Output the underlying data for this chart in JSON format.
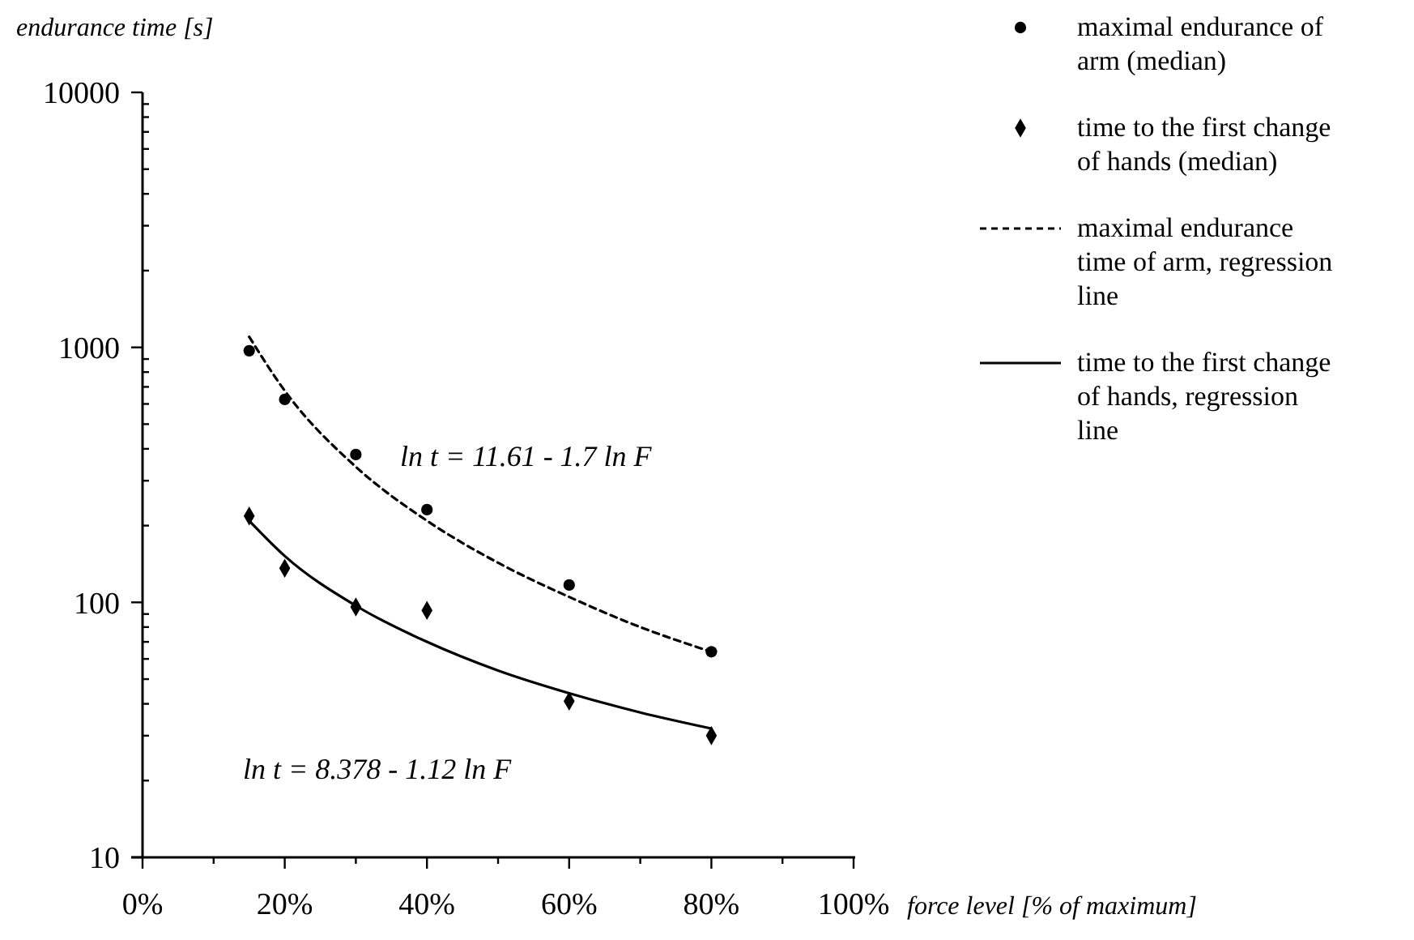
{
  "chart_data": {
    "type": "scatter",
    "xlabel": "force level [% of maximum]",
    "ylabel": "endurance time [s]",
    "log": "y",
    "grid": false,
    "legend": "right",
    "xlim": [
      0,
      100
    ],
    "ylim": [
      10,
      10000
    ],
    "xticks": [
      {
        "value": 0,
        "label": "0%"
      },
      {
        "value": 10,
        "label": null
      },
      {
        "value": 20,
        "label": "20%"
      },
      {
        "value": 30,
        "label": null
      },
      {
        "value": 40,
        "label": "40%"
      },
      {
        "value": 50,
        "label": null
      },
      {
        "value": 60,
        "label": "60%"
      },
      {
        "value": 70,
        "label": null
      },
      {
        "value": 80,
        "label": "80%"
      },
      {
        "value": 90,
        "label": null
      },
      {
        "value": 100,
        "label": "100%"
      }
    ],
    "yticks": [
      10,
      {
        "value": 20,
        "label": null
      },
      {
        "value": 30,
        "label": null
      },
      {
        "value": 40,
        "label": null
      },
      {
        "value": 50,
        "label": null
      },
      {
        "value": 60,
        "label": null
      },
      {
        "value": 70,
        "label": null
      },
      {
        "value": 80,
        "label": null
      },
      {
        "value": 90,
        "label": null
      },
      100,
      {
        "value": 200,
        "label": null
      },
      {
        "value": 300,
        "label": null
      },
      {
        "value": 400,
        "label": null
      },
      {
        "value": 500,
        "label": null
      },
      {
        "value": 600,
        "label": null
      },
      {
        "value": 700,
        "label": null
      },
      {
        "value": 800,
        "label": null
      },
      {
        "value": 900,
        "label": null
      },
      1000,
      {
        "value": 2000,
        "label": null
      },
      {
        "value": 3000,
        "label": null
      },
      {
        "value": 4000,
        "label": null
      },
      {
        "value": 5000,
        "label": null
      },
      {
        "value": 6000,
        "label": null
      },
      {
        "value": 7000,
        "label": null
      },
      {
        "value": 8000,
        "label": null
      },
      {
        "value": 9000,
        "label": null
      },
      10000
    ],
    "series": [
      {
        "name": "maximal endurance of arm (median)",
        "marker": "circle",
        "color": "#000000",
        "x": [
          15,
          20,
          30,
          40,
          60,
          80
        ],
        "values": [
          970,
          625,
          380,
          231,
          117,
          64
        ]
      },
      {
        "name": "time to the first change of hands (median)",
        "marker": "diamond",
        "color": "#000000",
        "x": [
          15,
          20,
          30,
          40,
          60,
          80
        ],
        "values": [
          218,
          136,
          96,
          93,
          41,
          30
        ]
      },
      {
        "name": "maximal endurance time of arm, regression line",
        "type": "line",
        "line_style": "dashed",
        "color": "#000000",
        "x": [
          15,
          20,
          30,
          40,
          50,
          60,
          70,
          80
        ],
        "values": [
          1100,
          676,
          340,
          209,
          143,
          105,
          80,
          64
        ]
      },
      {
        "name": "time to the first change of hands, regression line",
        "type": "line",
        "line_style": "solid",
        "color": "#000000",
        "x": [
          15,
          20,
          30,
          40,
          50,
          60,
          70,
          80
        ],
        "values": [
          209,
          152,
          97,
          70,
          54,
          44,
          37,
          32
        ]
      }
    ],
    "annotations": [
      "ln t = 11.61 - 1.7 ln F",
      "ln t = 8.378 - 1.12 ln F"
    ]
  }
}
